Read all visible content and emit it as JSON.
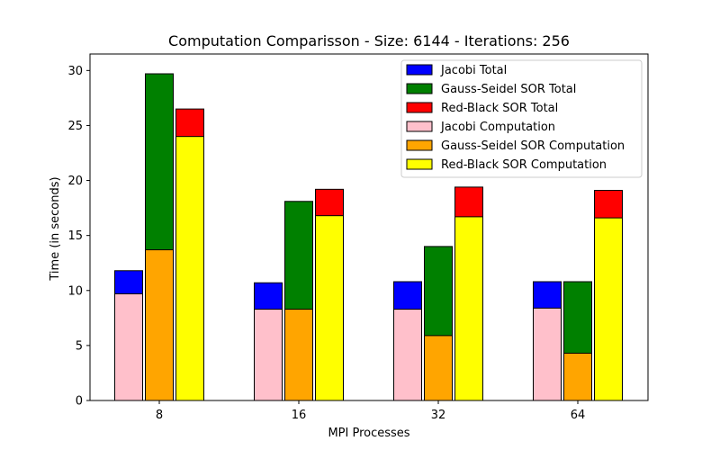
{
  "chart_data": {
    "type": "bar",
    "title": "Computation Comparisson - Size: 6144 - Iterations: 256",
    "xlabel": "MPI Processes",
    "ylabel": "Time (in seconds)",
    "categories": [
      "8",
      "16",
      "32",
      "64"
    ],
    "ylim": [
      0,
      31.5
    ],
    "yticks": [
      0,
      5,
      10,
      15,
      20,
      25,
      30
    ],
    "grid": false,
    "legend_position": "upper-right",
    "groups": [
      {
        "name": "Jacobi",
        "total": {
          "name": "Jacobi Total",
          "color": "#0000ff",
          "values": [
            11.8,
            10.7,
            10.8,
            10.8
          ]
        },
        "computation": {
          "name": "Jacobi Computation",
          "color": "#ffc0cb",
          "values": [
            9.7,
            8.3,
            8.3,
            8.4
          ]
        }
      },
      {
        "name": "Gauss-Seidel SOR",
        "total": {
          "name": "Gauss-Seidel SOR Total",
          "color": "#008000",
          "values": [
            29.7,
            18.1,
            14.0,
            10.8
          ]
        },
        "computation": {
          "name": "Gauss-Seidel SOR Computation",
          "color": "#ffa500",
          "values": [
            13.7,
            8.3,
            5.9,
            4.3
          ]
        }
      },
      {
        "name": "Red-Black SOR",
        "total": {
          "name": "Red-Black SOR Total",
          "color": "#ff0000",
          "values": [
            26.5,
            19.2,
            19.4,
            19.1
          ]
        },
        "computation": {
          "name": "Red-Black SOR Computation",
          "color": "#ffff00",
          "values": [
            24.0,
            16.8,
            16.7,
            16.6
          ]
        }
      }
    ]
  }
}
